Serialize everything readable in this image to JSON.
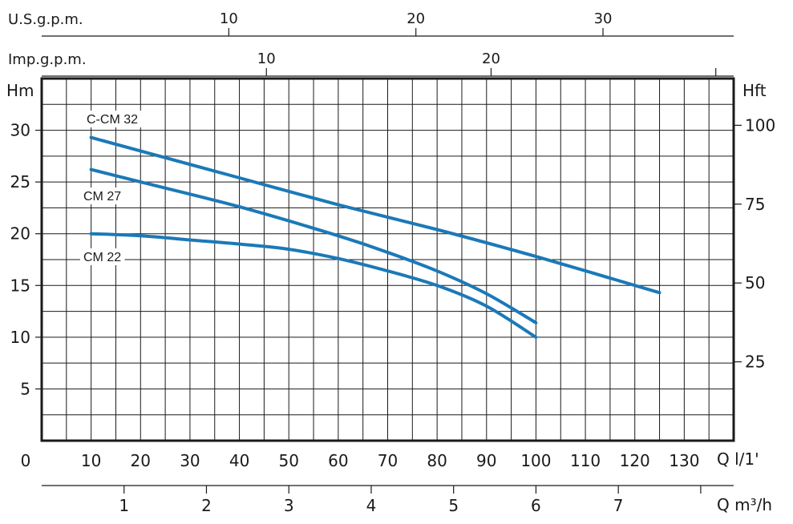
{
  "chart_data": {
    "type": "line",
    "x_axis": {
      "unit": "Q l/1'",
      "min": 0,
      "max": 140,
      "ticks": [
        0,
        10,
        20,
        30,
        40,
        50,
        60,
        70,
        80,
        90,
        100,
        110,
        120,
        130
      ]
    },
    "y_left": {
      "unit": "Hm",
      "min": 0,
      "max": 35,
      "ticks": [
        5,
        10,
        15,
        20,
        25,
        30
      ]
    },
    "y_right": {
      "unit": "Hft",
      "ticks": [
        25,
        50,
        75,
        100
      ]
    },
    "top_axis_usgpm": {
      "unit": "U.S.g.p.m.",
      "ticks": [
        10,
        20,
        30
      ]
    },
    "top_axis_impgpm": {
      "unit": "Imp.g.p.m.",
      "ticks": [
        10,
        20
      ]
    },
    "bottom_axis_m3h": {
      "unit": "Q m³/h",
      "ticks": [
        1,
        2,
        3,
        4,
        5,
        6,
        7
      ]
    },
    "grid": true,
    "line_color": "#1b79b8",
    "series": [
      {
        "name": "C-CM 32",
        "points": [
          [
            10,
            29.3
          ],
          [
            20,
            28
          ],
          [
            40,
            25.4
          ],
          [
            60,
            22.8
          ],
          [
            80,
            20.4
          ],
          [
            100,
            17.8
          ],
          [
            125,
            14.3
          ]
        ]
      },
      {
        "name": "CM 27",
        "points": [
          [
            10,
            26.2
          ],
          [
            20,
            25
          ],
          [
            40,
            22.6
          ],
          [
            60,
            19.8
          ],
          [
            70,
            18.2
          ],
          [
            80,
            16.4
          ],
          [
            90,
            14.2
          ],
          [
            100,
            11.4
          ]
        ]
      },
      {
        "name": "CM 22",
        "points": [
          [
            10,
            20
          ],
          [
            20,
            19.8
          ],
          [
            30,
            19.4
          ],
          [
            40,
            19
          ],
          [
            50,
            18.5
          ],
          [
            60,
            17.6
          ],
          [
            70,
            16.4
          ],
          [
            80,
            15
          ],
          [
            90,
            13
          ],
          [
            100,
            10
          ]
        ]
      }
    ]
  }
}
